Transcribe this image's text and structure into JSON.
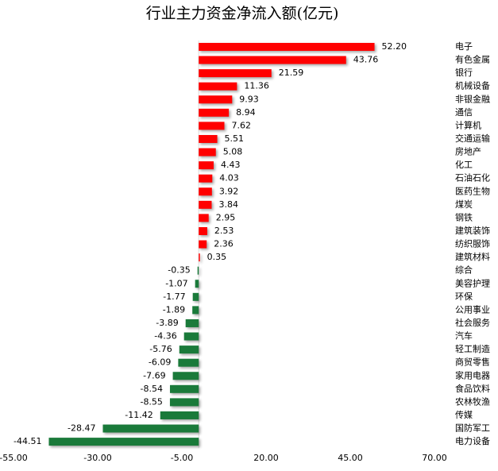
{
  "chart_data": {
    "type": "hbar",
    "title": "行业主力资金净流入额(亿元)",
    "categories": [
      "电子",
      "有色金属",
      "银行",
      "机械设备",
      "非银金融",
      "通信",
      "计算机",
      "交通运输",
      "房地产",
      "化工",
      "石油石化",
      "医药生物",
      "煤炭",
      "钢铁",
      "建筑装饰",
      "纺织服饰",
      "建筑材料",
      "综合",
      "美容护理",
      "环保",
      "公用事业",
      "社会服务",
      "汽车",
      "轻工制造",
      "商贸零售",
      "家用电器",
      "食品饮料",
      "农林牧渔",
      "传媒",
      "国防军工",
      "电力设备"
    ],
    "values": [
      52.2,
      43.76,
      21.59,
      11.36,
      9.93,
      8.94,
      7.62,
      5.51,
      5.08,
      4.43,
      4.03,
      3.92,
      3.84,
      2.95,
      2.53,
      2.36,
      0.35,
      -0.35,
      -1.07,
      -1.77,
      -1.89,
      -3.89,
      -4.36,
      -5.76,
      -6.09,
      -7.69,
      -8.54,
      -8.55,
      -11.42,
      -28.47,
      -44.51
    ],
    "value_labels": [
      "52.20",
      "43.76",
      "21.59",
      "11.36",
      "9.93",
      "8.94",
      "7.62",
      "5.51",
      "5.08",
      "4.43",
      "4.03",
      "3.92",
      "3.84",
      "2.95",
      "2.53",
      "2.36",
      "0.35",
      "-0.35",
      "-1.07",
      "-1.77",
      "-1.89",
      "-3.89",
      "-4.36",
      "-5.76",
      "-6.09",
      "-7.69",
      "-8.54",
      "-8.55",
      "-11.42",
      "-28.47",
      "-44.51"
    ],
    "positive_color": "#ff0000",
    "negative_color": "#1a7a3a",
    "xlim": [
      -55,
      70
    ],
    "xticks": [
      {
        "value": -55,
        "label": "-55.00"
      },
      {
        "value": -30,
        "label": "-30.00"
      },
      {
        "value": -5,
        "label": "-5.00"
      },
      {
        "value": 20,
        "label": "20.00"
      },
      {
        "value": 45,
        "label": "45.00"
      },
      {
        "value": 70,
        "label": "70.00"
      }
    ]
  }
}
